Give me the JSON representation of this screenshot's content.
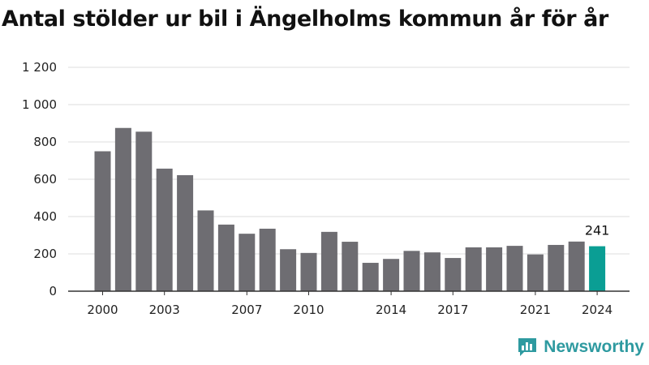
{
  "title": "Antal stölder ur bil i Ängelholms kommun år för år",
  "brand": {
    "name": "Newsworthy"
  },
  "colors": {
    "bar": "#6e6d72",
    "highlight": "#0a9e94",
    "grid": "#dcdcdc",
    "axis": "#333333"
  },
  "chart_data": {
    "type": "bar",
    "title": "Antal stölder ur bil i Ängelholms kommun år för år",
    "xlabel": "",
    "ylabel": "",
    "ylim": [
      0,
      1200
    ],
    "grid": true,
    "y_ticks": [
      0,
      200,
      400,
      600,
      800,
      1000,
      1200
    ],
    "y_tick_labels": [
      "0",
      "200",
      "400",
      "600",
      "800",
      "1 000",
      "1 200"
    ],
    "x_tick_labels": [
      "2000",
      "2003",
      "2007",
      "2010",
      "2014",
      "2017",
      "2021",
      "2024"
    ],
    "categories": [
      "2000",
      "2001",
      "2002",
      "2003",
      "2004",
      "2005",
      "2006",
      "2007",
      "2008",
      "2009",
      "2010",
      "2011",
      "2012",
      "2013",
      "2014",
      "2015",
      "2016",
      "2017",
      "2018",
      "2019",
      "2020",
      "2021",
      "2022",
      "2023",
      "2024"
    ],
    "values": [
      750,
      875,
      855,
      657,
      622,
      433,
      357,
      308,
      335,
      225,
      205,
      318,
      265,
      152,
      173,
      216,
      208,
      178,
      235,
      235,
      243,
      197,
      248,
      266,
      241
    ],
    "highlight": "2024",
    "data_labels": [
      {
        "category": "2024",
        "text": "241"
      }
    ]
  }
}
